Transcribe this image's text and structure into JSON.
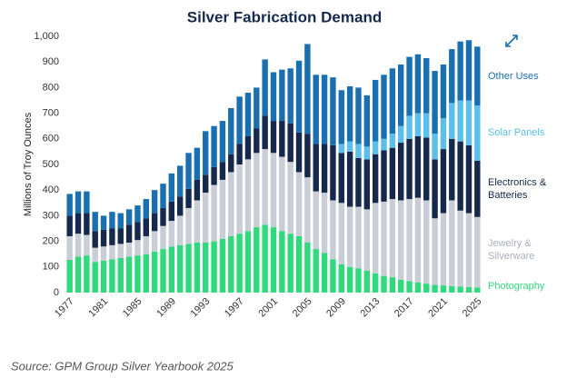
{
  "chart_data": {
    "type": "stacked_bar",
    "title": "Silver Fabrication Demand",
    "y_label": "Millions of Troy Ounces",
    "source": "Source: GPM Group Silver Yearbook 2025",
    "categories": [
      "1977",
      null,
      null,
      null,
      "1981",
      null,
      null,
      null,
      "1985",
      null,
      null,
      null,
      "1989",
      null,
      null,
      null,
      "1993",
      null,
      null,
      null,
      "1997",
      null,
      null,
      null,
      "2001",
      null,
      null,
      null,
      "2005",
      null,
      null,
      null,
      "2009",
      null,
      null,
      null,
      "2013",
      null,
      null,
      null,
      "2017",
      null,
      null,
      null,
      "2021",
      null,
      null,
      null,
      "2025"
    ],
    "ylim": [
      0,
      1000
    ],
    "yticks": [
      0,
      100,
      200,
      300,
      400,
      500,
      600,
      700,
      800,
      900,
      {
        "value": 1000,
        "label": "1,000"
      }
    ],
    "grid": false,
    "series": [
      {
        "name": "Photography",
        "color": "#2fd97c",
        "values": [
          128,
          140,
          145,
          120,
          125,
          130,
          135,
          140,
          145,
          150,
          160,
          170,
          180,
          185,
          190,
          195,
          195,
          200,
          210,
          220,
          230,
          240,
          255,
          265,
          255,
          240,
          230,
          220,
          195,
          170,
          155,
          130,
          110,
          100,
          95,
          85,
          75,
          65,
          60,
          50,
          45,
          40,
          35,
          30,
          28,
          25,
          23,
          22,
          20
        ]
      },
      {
        "name": "Jewelry & Silverware",
        "color": "#c8cdd6",
        "values": [
          92,
          90,
          80,
          55,
          55,
          55,
          55,
          55,
          60,
          70,
          80,
          90,
          100,
          115,
          140,
          165,
          195,
          220,
          230,
          250,
          270,
          280,
          290,
          295,
          290,
          290,
          280,
          250,
          255,
          225,
          235,
          230,
          240,
          235,
          240,
          240,
          275,
          290,
          305,
          310,
          320,
          330,
          325,
          260,
          282,
          335,
          297,
          288,
          275
        ]
      },
      {
        "name": "Electronics & Batteries",
        "color": "#16294d",
        "values": [
          80,
          80,
          85,
          65,
          65,
          65,
          60,
          70,
          70,
          70,
          70,
          70,
          75,
          75,
          75,
          80,
          70,
          70,
          70,
          70,
          80,
          90,
          95,
          130,
          125,
          140,
          150,
          155,
          170,
          185,
          190,
          215,
          195,
          215,
          190,
          195,
          190,
          200,
          200,
          225,
          235,
          240,
          245,
          230,
          250,
          240,
          270,
          265,
          220
        ]
      },
      {
        "name": "Solar Panels",
        "color": "#5bbfea",
        "values": [
          0,
          0,
          0,
          0,
          0,
          0,
          0,
          0,
          0,
          0,
          0,
          0,
          0,
          0,
          0,
          0,
          0,
          0,
          0,
          0,
          0,
          0,
          0,
          0,
          0,
          0,
          0,
          0,
          0,
          0,
          0,
          0,
          35,
          40,
          55,
          50,
          50,
          45,
          55,
          65,
          90,
          90,
          95,
          100,
          120,
          140,
          160,
          175,
          215
        ]
      },
      {
        "name": "Other Uses",
        "color": "#1a6fb0",
        "values": [
          85,
          85,
          85,
          75,
          55,
          65,
          60,
          60,
          65,
          75,
          90,
          95,
          110,
          120,
          140,
          125,
          170,
          160,
          160,
          180,
          185,
          170,
          160,
          220,
          190,
          200,
          215,
          280,
          350,
          270,
          270,
          265,
          210,
          215,
          220,
          200,
          240,
          250,
          255,
          240,
          230,
          230,
          215,
          245,
          210,
          210,
          230,
          235,
          230
        ]
      }
    ]
  }
}
